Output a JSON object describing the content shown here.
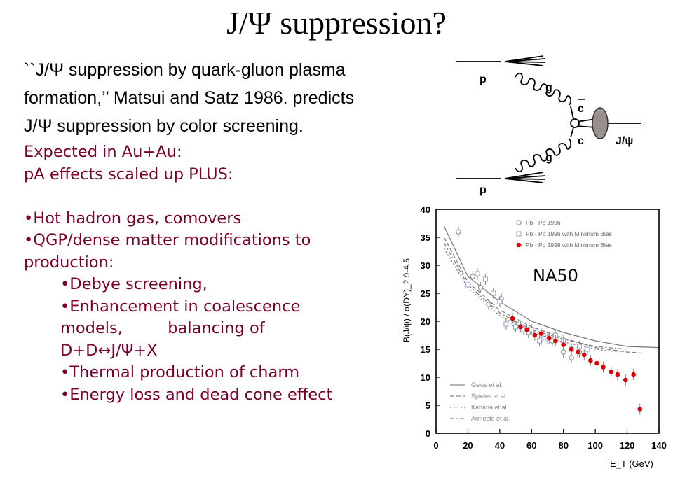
{
  "title": "J/Ψ suppression?",
  "intro": {
    "line1": "``J/Ψ suppression by quark-gluon plasma",
    "line2": "formation,’’ Matsui and Satz 1986. predicts",
    "line3": "J/Ψ suppression by color screening."
  },
  "expected": {
    "l1": "Expected in Au+Au:",
    "l2": "pA effects scaled up PLUS:",
    "b1": "Hot hadron gas, comovers",
    "b2": "QGP/dense matter modifications to",
    "b2c": "production:",
    "s1": "Debye screening,",
    "s2a": "Enhancement in coalescence",
    "s2b": "models,         balancing of",
    "s2c": "D+D↔J/Ψ+X",
    "s3": "Thermal production of charm",
    "s4": "Energy loss and dead cone effect"
  },
  "diagram": {
    "p_top": "p",
    "p_bottom": "p",
    "g_top": "g",
    "g_bottom": "g",
    "cbar": "c",
    "c": "c",
    "jpsi": "J/ψ"
  },
  "colors": {
    "red_text": "#7a0029",
    "red_points": "#e00000",
    "blob": "#9a8f8f"
  },
  "na50": "NA50",
  "chart_data": {
    "type": "scatter",
    "xlabel": "E_T (GeV)",
    "ylabel": "B(J/ψ) / σ(DY)_2.9-4.5",
    "xlim": [
      0,
      140
    ],
    "ylim": [
      0,
      40
    ],
    "xticks": [
      0,
      20,
      40,
      60,
      80,
      100,
      120,
      140
    ],
    "yticks": [
      0,
      5,
      10,
      15,
      20,
      25,
      30,
      35,
      40
    ],
    "legend_position": "top-right",
    "series": [
      {
        "name": "Pb - Pb 1996",
        "marker": "open-circle",
        "points": [
          [
            14,
            36.0
          ],
          [
            23,
            28.0
          ],
          [
            28,
            26.0
          ],
          [
            33,
            23.0
          ],
          [
            41,
            24.0
          ],
          [
            49,
            19.5
          ],
          [
            58,
            18.0
          ],
          [
            66,
            16.8
          ],
          [
            73,
            16.5
          ],
          [
            80,
            14.5
          ],
          [
            85,
            13.5
          ],
          [
            90,
            14.5
          ]
        ]
      },
      {
        "name": "Pb - Pb 1996 with Minimum Bias",
        "marker": "open-square",
        "points": [
          [
            20,
            26.5
          ],
          [
            26,
            28.5
          ],
          [
            31,
            27.5
          ],
          [
            36,
            25.0
          ],
          [
            40,
            23.5
          ],
          [
            44,
            19.5
          ],
          [
            50,
            19.0
          ],
          [
            55,
            18.5
          ],
          [
            60,
            18.5
          ],
          [
            65,
            16.5
          ],
          [
            70,
            17.0
          ],
          [
            75,
            17.5
          ],
          [
            80,
            16.5
          ],
          [
            85,
            15.0
          ],
          [
            90,
            15.5
          ],
          [
            95,
            15.0
          ]
        ]
      },
      {
        "name": "Pb - Pb 1998 with Minimum Bias",
        "marker": "filled-circle",
        "points": [
          [
            48,
            20.5
          ],
          [
            53,
            19.0
          ],
          [
            57,
            18.5
          ],
          [
            62,
            17.5
          ],
          [
            66,
            17.8
          ],
          [
            71,
            17.0
          ],
          [
            75,
            16.5
          ],
          [
            80,
            15.8
          ],
          [
            85,
            15.0
          ],
          [
            89,
            14.5
          ],
          [
            93,
            14.0
          ],
          [
            97,
            13.0
          ],
          [
            101,
            12.5
          ],
          [
            105,
            11.8
          ],
          [
            110,
            11.0
          ],
          [
            114,
            10.5
          ],
          [
            119,
            9.5
          ],
          [
            124,
            10.5
          ],
          [
            128,
            4.3
          ]
        ]
      }
    ],
    "curves": [
      {
        "name": "Geiss et al.",
        "style": "solid",
        "points": [
          [
            5,
            37
          ],
          [
            20,
            28
          ],
          [
            40,
            23.5
          ],
          [
            60,
            20
          ],
          [
            80,
            18
          ],
          [
            100,
            16.5
          ],
          [
            120,
            15.5
          ],
          [
            140,
            15.3
          ]
        ]
      },
      {
        "name": "Spieles et al.",
        "style": "dashed",
        "points": [
          [
            5,
            35
          ],
          [
            20,
            27
          ],
          [
            40,
            22
          ],
          [
            60,
            19
          ],
          [
            80,
            17
          ],
          [
            100,
            15.3
          ],
          [
            120,
            14.5
          ],
          [
            130,
            14.3
          ]
        ]
      },
      {
        "name": "Kahana et al.",
        "style": "dotted",
        "points": [
          [
            5,
            33
          ],
          [
            20,
            26
          ],
          [
            40,
            21
          ],
          [
            60,
            18
          ],
          [
            80,
            16.3
          ],
          [
            100,
            15
          ],
          [
            115,
            14.5
          ]
        ]
      },
      {
        "name": "Armesto et al.",
        "style": "dashdot",
        "points": [
          [
            5,
            34
          ],
          [
            20,
            26.5
          ],
          [
            40,
            21.5
          ],
          [
            60,
            18.5
          ],
          [
            80,
            16.8
          ],
          [
            100,
            15.5
          ],
          [
            120,
            15
          ]
        ]
      }
    ]
  }
}
